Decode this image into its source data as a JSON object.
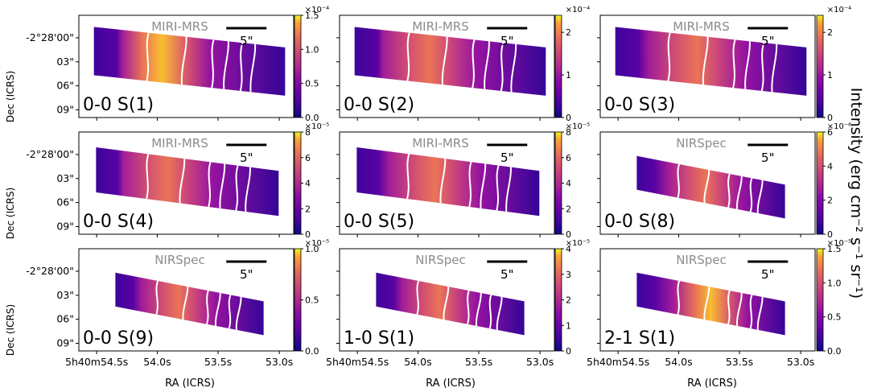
{
  "figure": {
    "ylabel": "Dec (ICRS)",
    "xlabel": "RA (ICRS)",
    "colorbar_label": "Intensity (erg cm⁻² s⁻¹ sr⁻¹)"
  },
  "chart_data": {
    "type": "heatmap",
    "colormap": "plasma",
    "ra_ticks": [
      "5h40m54.5s",
      "54.0s",
      "53.5s",
      "53.0s"
    ],
    "dec_ticks": [
      "-2°28'00\"",
      "03\"",
      "06\"",
      "09\""
    ],
    "scalebar_label": "5\"",
    "panels": [
      {
        "label": "0-0 S(1)",
        "instrument": "MIRI-MRS",
        "exponent": "×10⁻⁴",
        "vmin": 0,
        "vmax": 1.5,
        "ticks": [
          "0.0",
          "0.5",
          "1.0",
          "1.5"
        ],
        "peak_ra": 53.7,
        "emission": "bright"
      },
      {
        "label": "0-0 S(2)",
        "instrument": "MIRI-MRS",
        "exponent": "×10⁻⁴",
        "vmin": 0,
        "vmax": 2.4,
        "ticks": [
          "0",
          "1",
          "2"
        ],
        "peak_ra": 53.65,
        "emission": "medium"
      },
      {
        "label": "0-0 S(3)",
        "instrument": "MIRI-MRS",
        "exponent": "×10⁻⁴",
        "vmin": 0,
        "vmax": 2.4,
        "ticks": [
          "0",
          "1",
          "2"
        ],
        "peak_ra": 53.6,
        "emission": "medium"
      },
      {
        "label": "0-0 S(4)",
        "instrument": "MIRI-MRS",
        "exponent": "×10⁻⁵",
        "vmin": 0,
        "vmax": 8,
        "ticks": [
          "0",
          "2",
          "4",
          "6",
          "8"
        ],
        "peak_ra": 53.65,
        "emission": "medium"
      },
      {
        "label": "0-0 S(5)",
        "instrument": "MIRI-MRS",
        "exponent": "×10⁻⁵",
        "vmin": 0,
        "vmax": 8,
        "ticks": [
          "0",
          "2",
          "4",
          "6",
          "8"
        ],
        "peak_ra": 53.6,
        "emission": "medium"
      },
      {
        "label": "0-0 S(8)",
        "instrument": "NIRSpec",
        "exponent": "×10⁻⁶",
        "vmin": 0,
        "vmax": 6,
        "ticks": [
          "0",
          "2",
          "4",
          "6"
        ],
        "peak_ra": 53.55,
        "emission": "medium"
      },
      {
        "label": "0-0 S(9)",
        "instrument": "NIRSpec",
        "exponent": "×10⁻⁵",
        "vmin": 0,
        "vmax": 1.0,
        "ticks": [
          "0.0",
          "0.5",
          "1.0"
        ],
        "peak_ra": 53.6,
        "emission": "medium"
      },
      {
        "label": "1-0 S(1)",
        "instrument": "NIRSpec",
        "exponent": "×10⁻⁵",
        "vmin": 0,
        "vmax": 4,
        "ticks": [
          "0",
          "1",
          "2",
          "3",
          "4"
        ],
        "peak_ra": 53.6,
        "emission": "medium"
      },
      {
        "label": "2-1 S(1)",
        "instrument": "NIRSpec",
        "exponent": "×10⁻⁵",
        "vmin": 0,
        "vmax": 1.5,
        "ticks": [
          "0.0",
          "0.5",
          "1.0",
          "1.5"
        ],
        "peak_ra": 53.5,
        "emission": "bright"
      }
    ]
  }
}
